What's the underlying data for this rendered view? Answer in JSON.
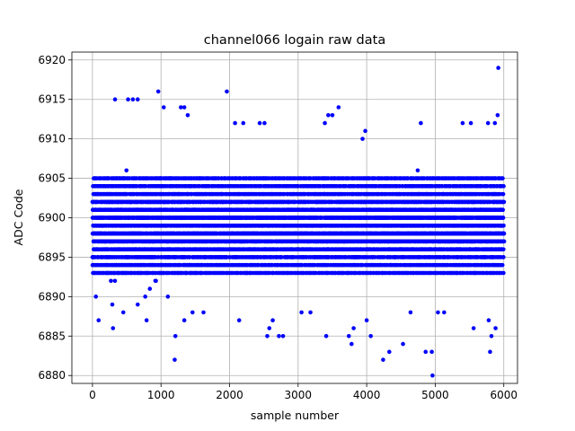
{
  "chart_data": {
    "type": "scatter",
    "title": "channel066 logain raw data",
    "xlabel": "sample number",
    "ylabel": "ADC Code",
    "xlim": [
      -300,
      6200
    ],
    "ylim": [
      6879,
      6921
    ],
    "xticks": [
      0,
      1000,
      2000,
      3000,
      4000,
      5000,
      6000
    ],
    "yticks": [
      6880,
      6885,
      6890,
      6895,
      6900,
      6905,
      6910,
      6915,
      6920
    ],
    "grid": true,
    "marker_color": "#0000ff",
    "n_samples": 6000,
    "dense_band": [
      6893,
      6905
    ],
    "outliers": [
      {
        "x": 330,
        "y": 6915
      },
      {
        "x": 520,
        "y": 6915
      },
      {
        "x": 590,
        "y": 6915
      },
      {
        "x": 660,
        "y": 6915
      },
      {
        "x": 960,
        "y": 6916
      },
      {
        "x": 1960,
        "y": 6916
      },
      {
        "x": 1290,
        "y": 6914
      },
      {
        "x": 1340,
        "y": 6914
      },
      {
        "x": 1390,
        "y": 6913
      },
      {
        "x": 1040,
        "y": 6914
      },
      {
        "x": 3590,
        "y": 6914
      },
      {
        "x": 3440,
        "y": 6913
      },
      {
        "x": 3500,
        "y": 6913
      },
      {
        "x": 3390,
        "y": 6912
      },
      {
        "x": 5920,
        "y": 6919
      },
      {
        "x": 5910,
        "y": 6913
      },
      {
        "x": 5870,
        "y": 6912
      },
      {
        "x": 5770,
        "y": 6912
      },
      {
        "x": 5520,
        "y": 6912
      },
      {
        "x": 5400,
        "y": 6912
      },
      {
        "x": 4790,
        "y": 6912
      },
      {
        "x": 3980,
        "y": 6911
      },
      {
        "x": 3940,
        "y": 6910
      },
      {
        "x": 2440,
        "y": 6912
      },
      {
        "x": 2510,
        "y": 6912
      },
      {
        "x": 2200,
        "y": 6912
      },
      {
        "x": 2080,
        "y": 6912
      },
      {
        "x": 1200,
        "y": 6882
      },
      {
        "x": 4960,
        "y": 6880
      },
      {
        "x": 4240,
        "y": 6882
      },
      {
        "x": 4330,
        "y": 6883
      },
      {
        "x": 4860,
        "y": 6883
      },
      {
        "x": 4950,
        "y": 6883
      },
      {
        "x": 5800,
        "y": 6883
      },
      {
        "x": 3780,
        "y": 6884
      },
      {
        "x": 4530,
        "y": 6884
      },
      {
        "x": 3740,
        "y": 6885
      },
      {
        "x": 3410,
        "y": 6885
      },
      {
        "x": 2550,
        "y": 6885
      },
      {
        "x": 2720,
        "y": 6885
      },
      {
        "x": 2780,
        "y": 6885
      },
      {
        "x": 1210,
        "y": 6885
      },
      {
        "x": 5820,
        "y": 6885
      },
      {
        "x": 4060,
        "y": 6885
      },
      {
        "x": 300,
        "y": 6886
      },
      {
        "x": 2580,
        "y": 6886
      },
      {
        "x": 5560,
        "y": 6886
      },
      {
        "x": 5880,
        "y": 6886
      },
      {
        "x": 3810,
        "y": 6886
      },
      {
        "x": 90,
        "y": 6887
      },
      {
        "x": 790,
        "y": 6887
      },
      {
        "x": 1340,
        "y": 6887
      },
      {
        "x": 2140,
        "y": 6887
      },
      {
        "x": 2630,
        "y": 6887
      },
      {
        "x": 5780,
        "y": 6887
      },
      {
        "x": 4000,
        "y": 6887
      },
      {
        "x": 450,
        "y": 6888
      },
      {
        "x": 1460,
        "y": 6888
      },
      {
        "x": 1620,
        "y": 6888
      },
      {
        "x": 3050,
        "y": 6888
      },
      {
        "x": 3180,
        "y": 6888
      },
      {
        "x": 4640,
        "y": 6888
      },
      {
        "x": 5040,
        "y": 6888
      },
      {
        "x": 5130,
        "y": 6888
      },
      {
        "x": 290,
        "y": 6889
      },
      {
        "x": 660,
        "y": 6889
      },
      {
        "x": 50,
        "y": 6890
      },
      {
        "x": 770,
        "y": 6890
      },
      {
        "x": 1100,
        "y": 6890
      }
    ]
  }
}
